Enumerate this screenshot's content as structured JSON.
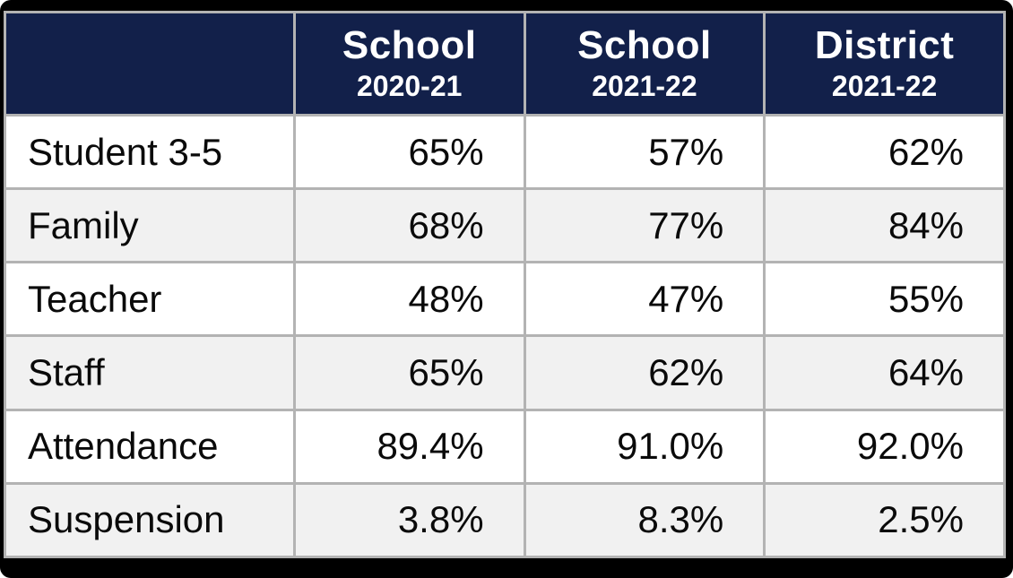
{
  "chart_data": {
    "type": "table",
    "columns": [
      {
        "title": "",
        "subtitle": ""
      },
      {
        "title": "School",
        "subtitle": "2020-21"
      },
      {
        "title": "School",
        "subtitle": "2021-22"
      },
      {
        "title": "District",
        "subtitle": "2021-22"
      }
    ],
    "rows": [
      {
        "label": "Student 3-5",
        "values": [
          "65%",
          "57%",
          "62%"
        ]
      },
      {
        "label": "Family",
        "values": [
          "68%",
          "77%",
          "84%"
        ]
      },
      {
        "label": "Teacher",
        "values": [
          "48%",
          "47%",
          "55%"
        ]
      },
      {
        "label": "Staff",
        "values": [
          "65%",
          "62%",
          "64%"
        ]
      },
      {
        "label": "Attendance",
        "values": [
          "89.4%",
          "91.0%",
          "92.0%"
        ]
      },
      {
        "label": "Suspension",
        "values": [
          "3.8%",
          "8.3%",
          "2.5%"
        ]
      }
    ],
    "colors": {
      "header_bg": "#12204a",
      "header_text": "#ffffff",
      "grid": "#b3b3b3",
      "row_bg": "#ffffff",
      "row_alt_bg": "#f1f1f1",
      "body_text": "#0a0a0a",
      "frame": "#000000"
    },
    "layout": {
      "grid": "on",
      "row_striping": "alternating white / light-gray starting white"
    }
  }
}
